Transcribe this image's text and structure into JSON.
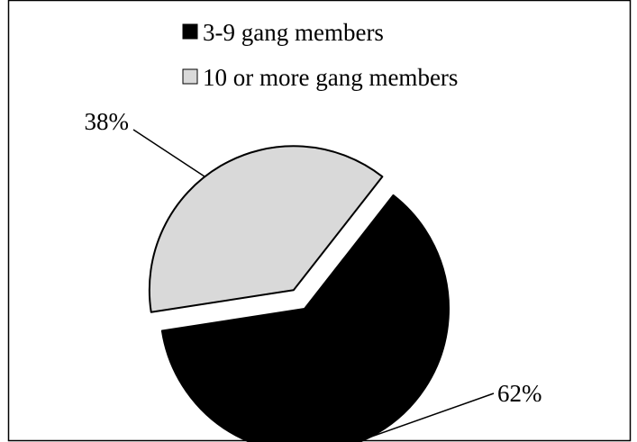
{
  "chart_data": {
    "type": "pie",
    "title": "",
    "legend_position": "top",
    "slices": [
      {
        "label": "3-9 gang members",
        "value": 62,
        "value_label": "62%",
        "color": "#000000",
        "exploded": false
      },
      {
        "label": "10 or more gang members",
        "value": 38,
        "value_label": "38%",
        "color": "#d9d9d9",
        "exploded": true
      }
    ]
  }
}
